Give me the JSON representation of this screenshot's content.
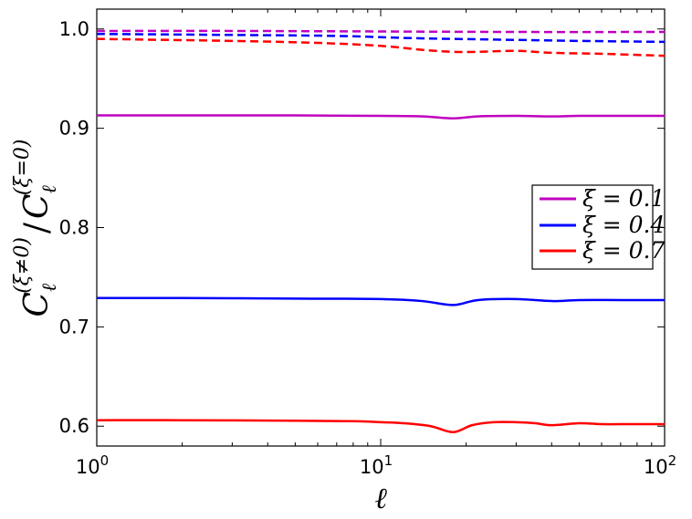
{
  "chart_data": {
    "type": "line",
    "title": "",
    "xlabel": "ℓ",
    "ylabel": "C_ℓ^(ξ≠0) / C_ℓ^(ξ=0)",
    "ylabel_parts": {
      "sym": "C",
      "sub": "ℓ",
      "sup_num": "(ξ≠0)",
      "slash": "/",
      "sup_den": "(ξ=0)"
    },
    "x_scale": "log",
    "xlim": [
      1,
      100
    ],
    "ylim": [
      0.58,
      1.02
    ],
    "x_ticks": [
      {
        "value": 1,
        "base": "10",
        "exp": "0"
      },
      {
        "value": 10,
        "base": "10",
        "exp": "1"
      },
      {
        "value": 100,
        "base": "10",
        "exp": "2"
      }
    ],
    "y_ticks": [
      {
        "value": 0.6,
        "label": "0.6"
      },
      {
        "value": 0.7,
        "label": "0.7"
      },
      {
        "value": 0.8,
        "label": "0.8"
      },
      {
        "value": 0.9,
        "label": "0.9"
      },
      {
        "value": 1.0,
        "label": "1.0"
      }
    ],
    "grid": false,
    "legend": {
      "placement": "center-right",
      "entries": [
        {
          "label": "ξ = 0.1",
          "color": "#bf00bf"
        },
        {
          "label": "ξ = 0.4",
          "color": "#0000ff"
        },
        {
          "label": "ξ = 0.7",
          "color": "#ff0000"
        }
      ]
    },
    "series": [
      {
        "name": "ξ = 0.1",
        "style": "solid",
        "color": "#bf00bf",
        "x": [
          1,
          2,
          5,
          10,
          14,
          18,
          22,
          30,
          40,
          50,
          70,
          100
        ],
        "y": [
          0.913,
          0.913,
          0.913,
          0.9125,
          0.912,
          0.91,
          0.912,
          0.9125,
          0.912,
          0.9125,
          0.9125,
          0.9125
        ]
      },
      {
        "series_role": "dashed-0.1",
        "style": "dashed",
        "color": "#bf00bf",
        "x": [
          1,
          3,
          10,
          30,
          100
        ],
        "y": [
          0.998,
          0.998,
          0.9975,
          0.997,
          0.997
        ]
      },
      {
        "name": "ξ = 0.4",
        "style": "solid",
        "color": "#0000ff",
        "x": [
          1,
          2,
          5,
          10,
          14,
          18,
          22,
          30,
          40,
          50,
          70,
          100
        ],
        "y": [
          0.729,
          0.729,
          0.7285,
          0.728,
          0.726,
          0.722,
          0.727,
          0.728,
          0.726,
          0.727,
          0.727,
          0.727
        ]
      },
      {
        "series_role": "dashed-0.4",
        "style": "dashed",
        "color": "#0000ff",
        "x": [
          1,
          3,
          7,
          12,
          18,
          30,
          50,
          100
        ],
        "y": [
          0.995,
          0.994,
          0.993,
          0.991,
          0.99,
          0.989,
          0.988,
          0.987
        ]
      },
      {
        "name": "ξ = 0.7",
        "style": "solid",
        "color": "#ff0000",
        "x": [
          1,
          2,
          5,
          8,
          10,
          12,
          15,
          18,
          21,
          25,
          30,
          35,
          40,
          50,
          60,
          70,
          100
        ],
        "y": [
          0.606,
          0.606,
          0.6055,
          0.605,
          0.604,
          0.603,
          0.6,
          0.594,
          0.601,
          0.604,
          0.604,
          0.603,
          0.601,
          0.603,
          0.602,
          0.602,
          0.602
        ]
      },
      {
        "series_role": "dashed-0.7",
        "style": "dashed",
        "color": "#ff0000",
        "x": [
          1,
          3,
          6,
          10,
          14,
          18,
          22,
          30,
          40,
          60,
          100
        ],
        "y": [
          0.99,
          0.988,
          0.986,
          0.983,
          0.979,
          0.977,
          0.977,
          0.978,
          0.976,
          0.975,
          0.973
        ]
      }
    ]
  }
}
